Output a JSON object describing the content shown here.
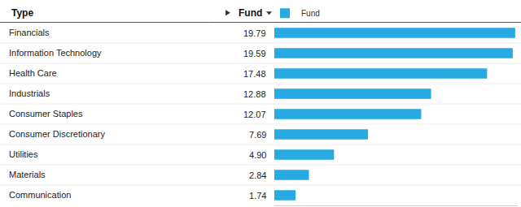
{
  "chart_data": {
    "type": "bar",
    "orientation": "horizontal",
    "ylabel": "Type",
    "xlabel": "Fund",
    "categories": [
      "Financials",
      "Information Technology",
      "Health Care",
      "Industrials",
      "Consumer Staples",
      "Consumer Discretionary",
      "Utilities",
      "Materials",
      "Communication"
    ],
    "series": [
      {
        "name": "Fund",
        "color": "#27aae1",
        "values": [
          19.79,
          19.59,
          17.48,
          12.88,
          12.07,
          7.69,
          4.9,
          2.84,
          1.74
        ],
        "value_labels": [
          "19.79",
          "19.59",
          "17.48",
          "12.88",
          "12.07",
          "7.69",
          "4.90",
          "2.84",
          "1.74"
        ]
      }
    ],
    "xlim": [
      0,
      20
    ],
    "xticks": [],
    "data_labels": true,
    "tick_labels": "y",
    "legend": "top",
    "grid": false
  }
}
